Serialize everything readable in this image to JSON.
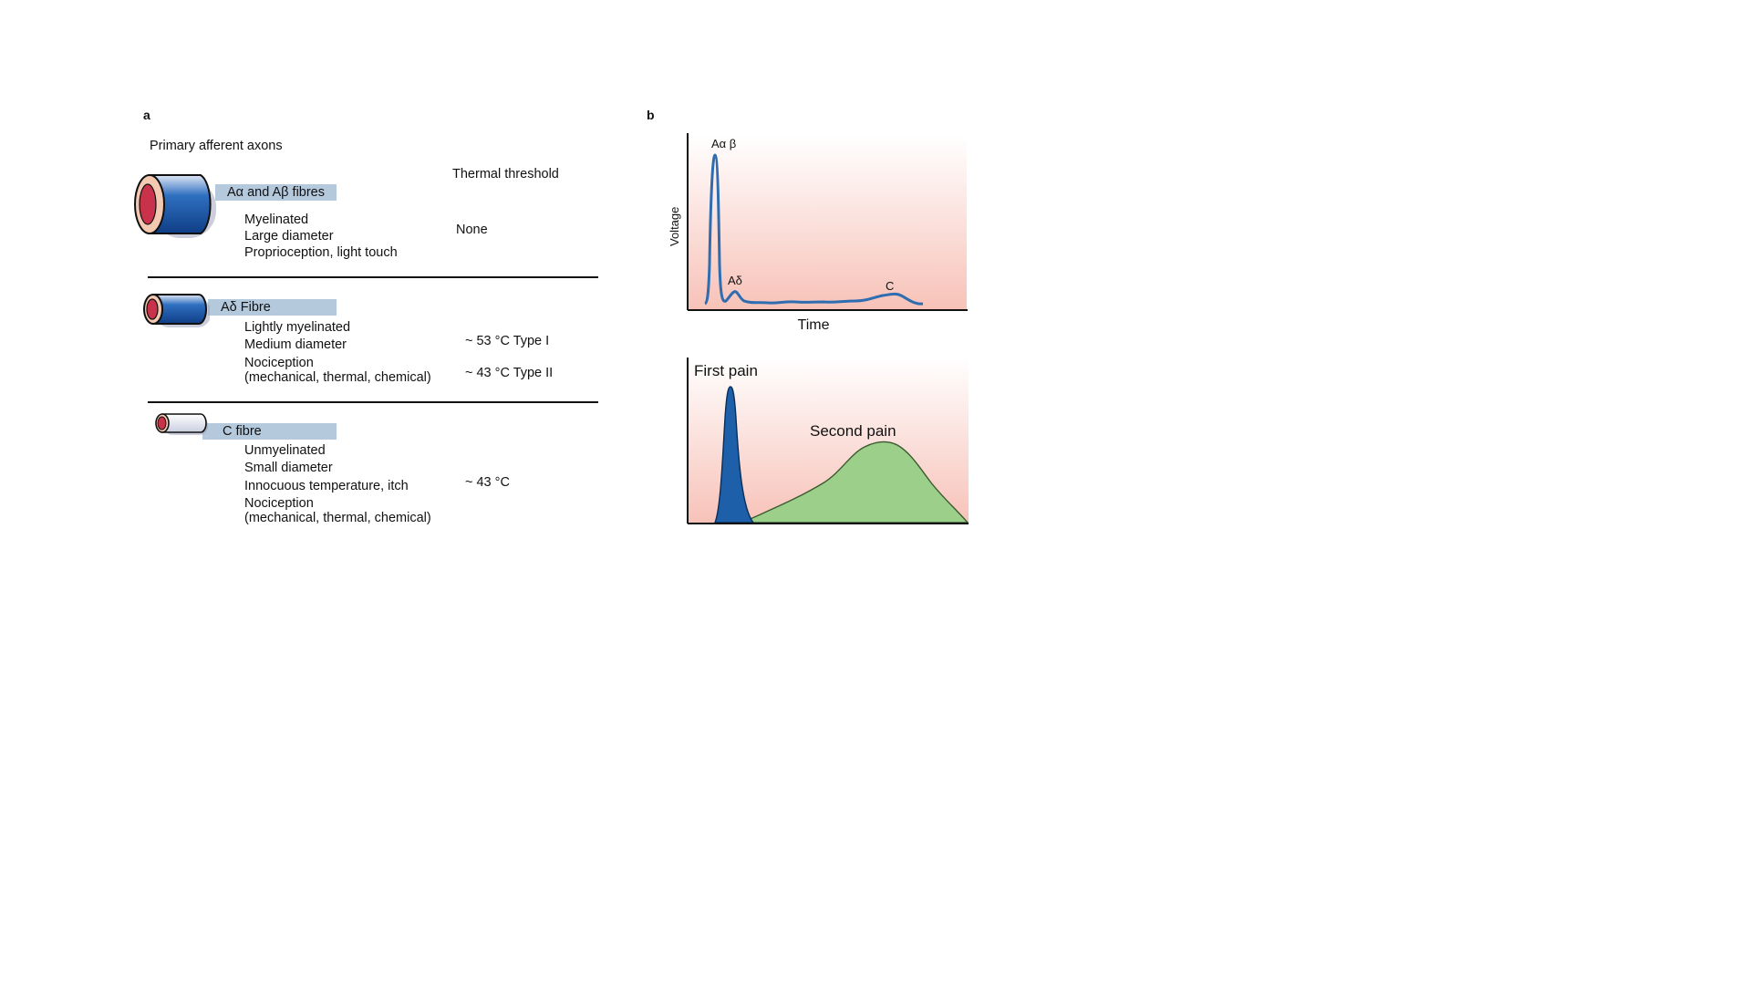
{
  "panel_a": {
    "letter": "a",
    "heading": "Primary afferent axons",
    "threshold_heading": "Thermal threshold",
    "fibres": [
      {
        "name": "Aα and Aβ fibres",
        "properties": [
          "Myelinated",
          "Large diameter",
          "Proprioception, light touch"
        ],
        "thresholds": [
          "None"
        ]
      },
      {
        "name": "Aδ Fibre",
        "properties": [
          "Lightly myelinated",
          "Medium diameter",
          "Nociception",
          "(mechanical, thermal, chemical)"
        ],
        "thresholds": [
          "~ 53 °C Type I",
          "~ 43 °C Type II"
        ]
      },
      {
        "name": "C fibre",
        "properties": [
          "Unmyelinated",
          "Small diameter",
          "Innocuous temperature, itch",
          "Nociception",
          "(mechanical, thermal, chemical)"
        ],
        "thresholds": [
          "~ 43 °C"
        ]
      }
    ]
  },
  "panel_b": {
    "letter": "b",
    "top_plot": {
      "ylabel": "Voltage",
      "xlabel": "Time",
      "peak_labels": [
        "Aα β",
        "Aδ",
        "C"
      ]
    },
    "bottom_plot": {
      "labels": [
        "First pain",
        "Second pain"
      ]
    }
  },
  "colors": {
    "myelin_blue": "#1f5aa6",
    "axon_red": "#c8324a",
    "band": "#b5c9dd",
    "plot_bg_pink": "#f8c9c0",
    "trace_blue": "#2f6db0",
    "first_pain_fill": "#1d5fa8",
    "second_pain_fill": "#9ccf8a"
  }
}
